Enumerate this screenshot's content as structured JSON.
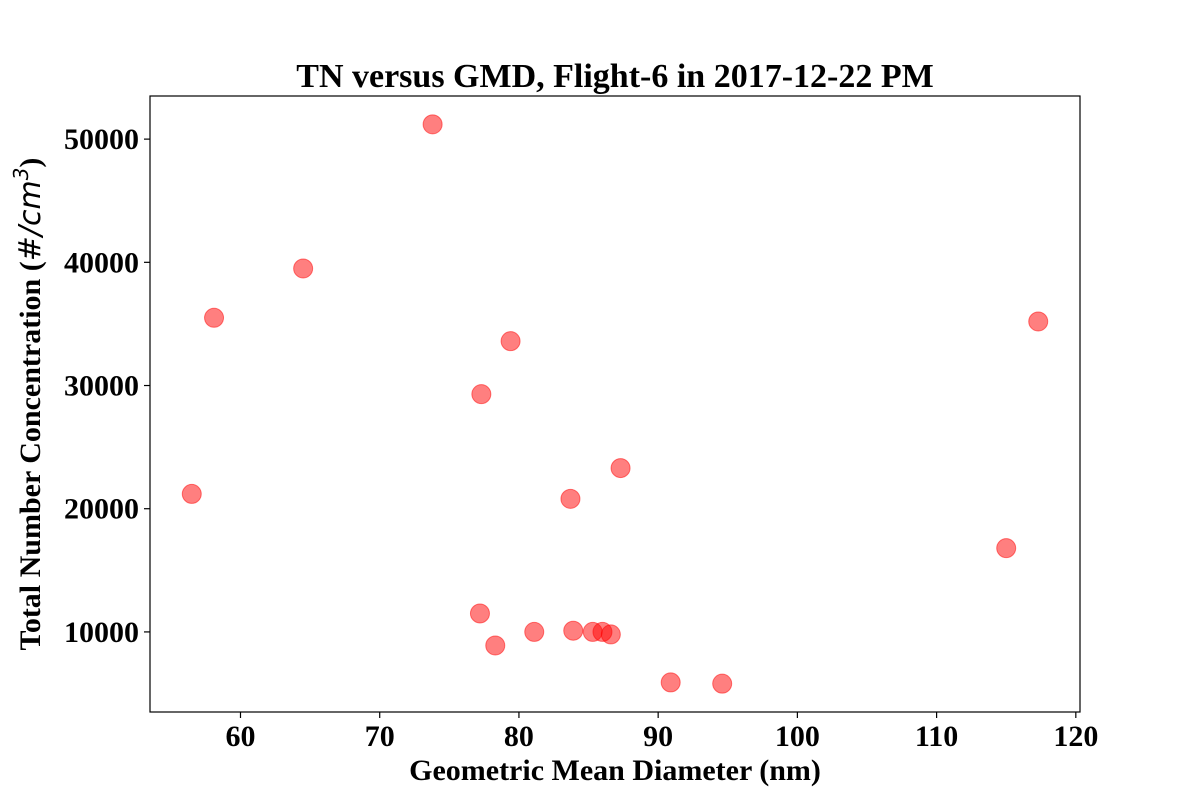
{
  "chart_data": {
    "type": "scatter",
    "title": "TN versus GMD, Flight-6 in 2017-12-22 PM",
    "xlabel": "Geometric Mean Diameter (nm)",
    "ylabel_main": "Total Number Concentration (",
    "ylabel_unit": "#/cm",
    "ylabel_sup": "3",
    "ylabel_close": ")",
    "xlim": [
      53.5,
      120.3
    ],
    "ylim": [
      3500,
      53500
    ],
    "xticks": [
      60,
      70,
      80,
      90,
      100,
      110,
      120
    ],
    "yticks": [
      10000,
      20000,
      30000,
      40000,
      50000
    ],
    "grid": false,
    "marker_color": "#ff0000",
    "marker_alpha": 0.5,
    "points": [
      {
        "x": 73.8,
        "y": 51200
      },
      {
        "x": 64.5,
        "y": 39500
      },
      {
        "x": 58.1,
        "y": 35500
      },
      {
        "x": 79.4,
        "y": 33600
      },
      {
        "x": 77.3,
        "y": 29300
      },
      {
        "x": 87.3,
        "y": 23300
      },
      {
        "x": 56.5,
        "y": 21200
      },
      {
        "x": 83.7,
        "y": 20800
      },
      {
        "x": 117.3,
        "y": 35200
      },
      {
        "x": 115.0,
        "y": 16800
      },
      {
        "x": 77.2,
        "y": 11500
      },
      {
        "x": 78.3,
        "y": 8900
      },
      {
        "x": 81.1,
        "y": 10000
      },
      {
        "x": 83.9,
        "y": 10100
      },
      {
        "x": 85.3,
        "y": 10000
      },
      {
        "x": 86.0,
        "y": 10000
      },
      {
        "x": 86.6,
        "y": 9800
      },
      {
        "x": 90.9,
        "y": 5900
      },
      {
        "x": 94.6,
        "y": 5800
      }
    ]
  }
}
